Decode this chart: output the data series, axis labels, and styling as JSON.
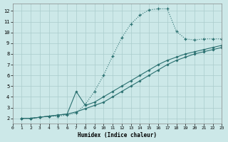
{
  "xlabel": "Humidex (Indice chaleur)",
  "bg_color": "#cce8e8",
  "grid_color": "#aacccc",
  "line_color": "#2a7070",
  "xlim": [
    0,
    23
  ],
  "ylim": [
    1.5,
    12.7
  ],
  "xticks": [
    0,
    1,
    2,
    3,
    4,
    5,
    6,
    7,
    8,
    9,
    10,
    11,
    12,
    13,
    14,
    15,
    16,
    17,
    18,
    19,
    20,
    21,
    22,
    23
  ],
  "yticks": [
    2,
    3,
    4,
    5,
    6,
    7,
    8,
    9,
    10,
    11,
    12
  ],
  "line1_x": [
    1,
    2,
    3,
    4,
    5,
    6,
    7,
    8,
    9,
    10,
    11,
    12,
    13,
    14,
    15,
    16,
    17,
    18,
    19,
    20,
    21,
    22,
    23
  ],
  "line1_y": [
    2.0,
    2.0,
    2.1,
    2.2,
    2.2,
    2.3,
    2.5,
    3.3,
    4.5,
    6.0,
    7.8,
    9.5,
    10.8,
    11.6,
    12.1,
    12.2,
    12.2,
    10.1,
    9.4,
    9.3,
    9.4,
    9.4,
    9.4
  ],
  "line2_x": [
    1,
    2,
    3,
    4,
    5,
    6,
    7,
    8,
    9,
    10,
    11,
    12,
    13,
    14,
    15,
    16,
    17,
    18,
    19,
    20,
    21,
    22,
    23
  ],
  "line2_y": [
    2.0,
    2.0,
    2.1,
    2.2,
    2.3,
    2.4,
    4.5,
    3.2,
    3.5,
    4.0,
    4.5,
    5.0,
    5.5,
    6.0,
    6.5,
    7.0,
    7.4,
    7.7,
    8.0,
    8.2,
    8.4,
    8.6,
    8.8
  ],
  "line3_x": [
    1,
    2,
    3,
    4,
    5,
    6,
    7,
    8,
    9,
    10,
    11,
    12,
    13,
    14,
    15,
    16,
    17,
    18,
    19,
    20,
    21,
    22,
    23
  ],
  "line3_y": [
    2.0,
    2.0,
    2.1,
    2.2,
    2.3,
    2.4,
    2.6,
    2.9,
    3.2,
    3.5,
    4.0,
    4.5,
    5.0,
    5.5,
    6.0,
    6.5,
    7.0,
    7.4,
    7.7,
    8.0,
    8.2,
    8.4,
    8.6
  ]
}
